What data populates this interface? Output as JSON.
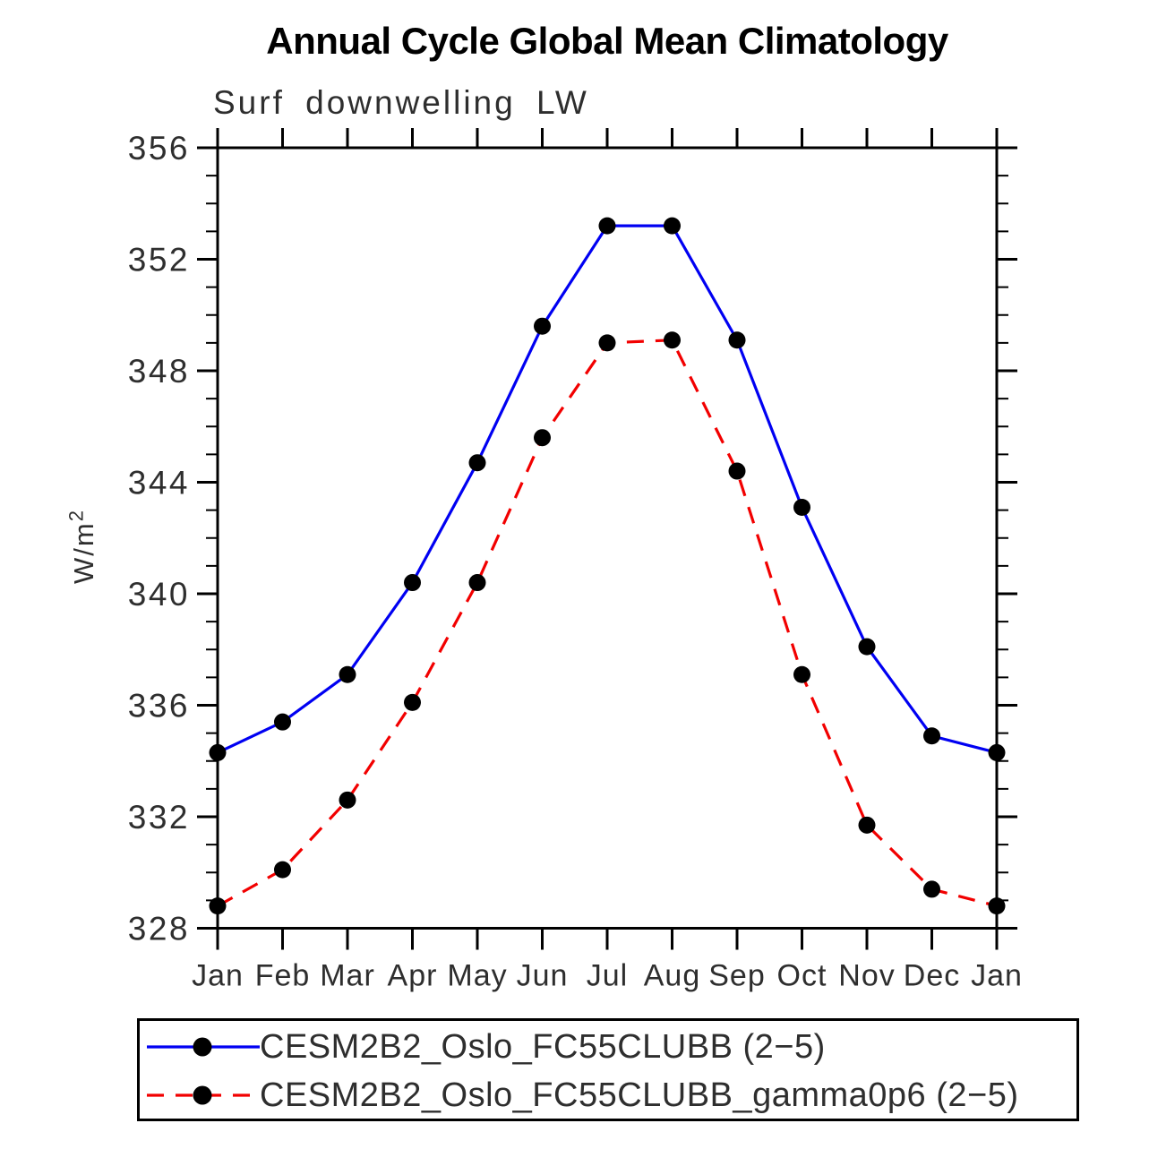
{
  "title": "Annual Cycle Global Mean Climatology",
  "subtitle": "Surf downwelling LW",
  "ylabel": {
    "base": "W/m",
    "sup": "2"
  },
  "chart_data": {
    "type": "line",
    "title": "Surf downwelling LW",
    "ylabel": "W/m2",
    "categories": [
      "Jan",
      "Feb",
      "Mar",
      "Apr",
      "May",
      "Jun",
      "Jul",
      "Aug",
      "Sep",
      "Oct",
      "Nov",
      "Dec",
      "Jan"
    ],
    "series": [
      {
        "name": "CESM2B2_Oslo_FC55CLUBB (2−5)",
        "color": "#0000f2",
        "style": "solid",
        "marker": "circle",
        "marker_color": "#000000",
        "values": [
          334.3,
          335.4,
          337.1,
          340.4,
          344.7,
          349.6,
          353.2,
          353.2,
          349.1,
          343.1,
          338.1,
          334.9,
          334.3
        ]
      },
      {
        "name": "CESM2B2_Oslo_FC55CLUBB_gamma0p6 (2−5)",
        "color": "#f20000",
        "style": "dashed",
        "marker": "circle",
        "marker_color": "#000000",
        "values": [
          328.8,
          330.1,
          332.6,
          336.1,
          340.4,
          345.6,
          349.0,
          349.1,
          344.4,
          337.1,
          331.7,
          329.4,
          328.8
        ]
      }
    ],
    "ylim": [
      328,
      356
    ],
    "yticks_major": [
      328,
      332,
      336,
      340,
      344,
      348,
      352,
      356
    ],
    "ytick_minor_step": 1,
    "grid": false,
    "legend_position": "bottom",
    "axis_color": "#000000"
  }
}
